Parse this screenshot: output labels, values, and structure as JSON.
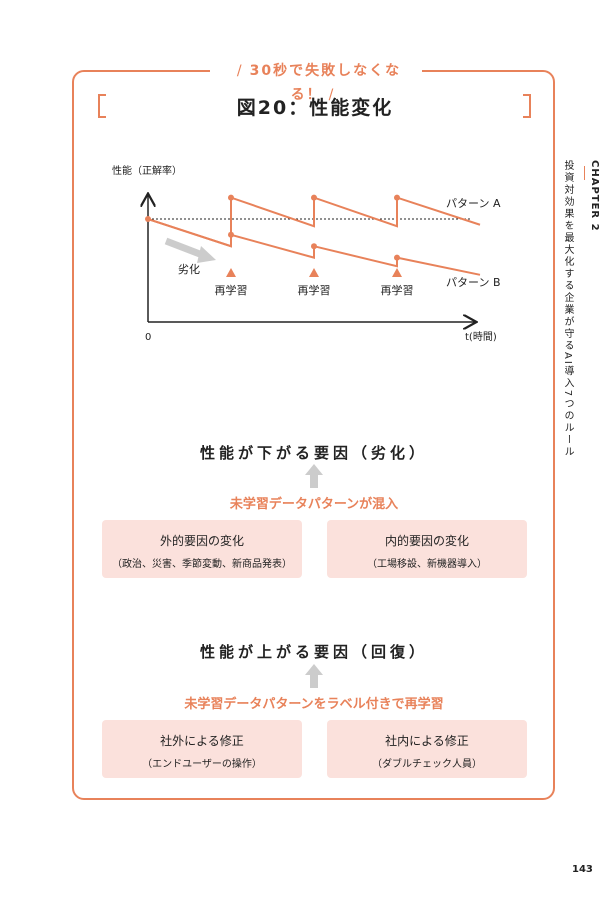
{
  "banner": "30秒で失敗しなくなる！",
  "figure_title": "図20：性能変化",
  "chart_data": {
    "type": "line",
    "ylabel": "性能（正解率）",
    "xlabel": "t(時間)",
    "origin_label": "0",
    "x": [
      0,
      1,
      1,
      2,
      2,
      3,
      3,
      4
    ],
    "series": [
      {
        "name": "パターン A",
        "values": [
          0.72,
          0.53,
          0.87,
          0.67,
          0.87,
          0.67,
          0.87,
          0.68
        ]
      },
      {
        "name": "パターン B",
        "values": [
          0.72,
          0.53,
          0.61,
          0.45,
          0.53,
          0.39,
          0.45,
          0.33
        ]
      }
    ],
    "baseline": 0.72,
    "retrain_x": [
      1,
      2,
      3
    ],
    "retrain_label": "再学習",
    "degrade_label": "劣化"
  },
  "sections": [
    {
      "title": "性能が下がる要因（劣化）",
      "mix": "未学習データパターンが混入",
      "boxes": [
        {
          "t1": "外的要因の変化",
          "t2": "（政治、災害、季節変動、新商品発表）"
        },
        {
          "t1": "内的要因の変化",
          "t2": "（工場移設、新機器導入）"
        }
      ]
    },
    {
      "title": "性能が上がる要因（回復）",
      "mix": "未学習データパターンをラベル付きで再学習",
      "boxes": [
        {
          "t1": "社外による修正",
          "t2": "（エンドユーザーの操作）"
        },
        {
          "t1": "社内による修正",
          "t2": "（ダブルチェック人員）"
        }
      ]
    }
  ],
  "sidebar": {
    "chapter": "CHAPTER 2",
    "desc": "投資対効果を最大化する企業が守るAI導入7つのルール"
  },
  "page_number": "143",
  "colors": {
    "accent": "#e8825a",
    "box": "#fbe1dc",
    "arrow": "#cccccc"
  }
}
